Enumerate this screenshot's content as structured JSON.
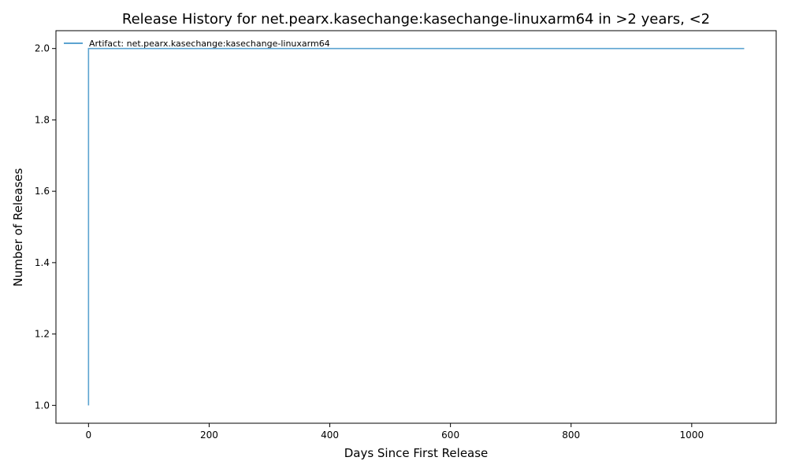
{
  "chart_data": {
    "type": "line",
    "title": "Release History for net.pearx.kasechange:kasechange-linuxarm64 in >2 years, <2",
    "xlabel": "Days Since First Release",
    "ylabel": "Number of Releases",
    "xlim": [
      -54,
      1140
    ],
    "ylim": [
      0.95,
      2.05
    ],
    "x_ticks": [
      0,
      200,
      400,
      600,
      800,
      1000
    ],
    "y_ticks": [
      1.0,
      1.2,
      1.4,
      1.6,
      1.8,
      2.0
    ],
    "x_tick_labels": [
      "0",
      "200",
      "400",
      "600",
      "800",
      "1000"
    ],
    "y_tick_labels": [
      "1.0",
      "1.2",
      "1.4",
      "1.6",
      "1.8",
      "2.0"
    ],
    "grid": false,
    "legend_position": "top-left",
    "series": [
      {
        "name": "Artifact: net.pearx.kasechange:kasechange-linuxarm64",
        "color": "#5ba3d0",
        "step": true,
        "x": [
          0,
          0,
          1087
        ],
        "y": [
          1,
          2,
          2
        ]
      }
    ]
  }
}
